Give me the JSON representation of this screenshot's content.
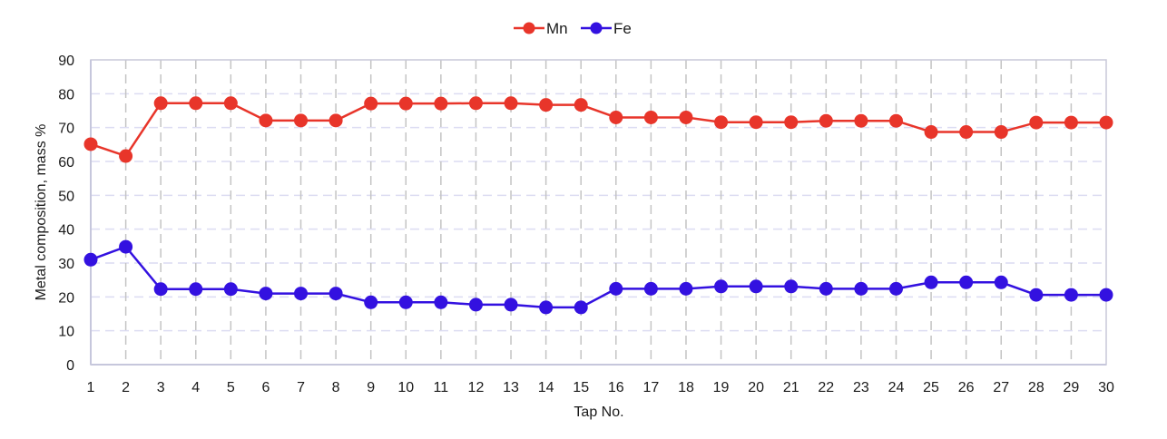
{
  "chart_data": {
    "type": "line",
    "title": "",
    "xlabel": "Tap No.",
    "ylabel": "Metal composition, mass %",
    "ylim": [
      0,
      90
    ],
    "yticks": [
      0,
      10,
      20,
      30,
      40,
      50,
      60,
      70,
      80,
      90
    ],
    "grid": true,
    "legend_position": "top-center",
    "categories": [
      1,
      2,
      3,
      4,
      5,
      6,
      7,
      8,
      9,
      10,
      11,
      12,
      13,
      14,
      15,
      16,
      17,
      18,
      19,
      20,
      21,
      22,
      23,
      24,
      25,
      26,
      27,
      28,
      29,
      30
    ],
    "series": [
      {
        "name": "Mn",
        "color": "#E8352A",
        "marker": "circle",
        "values": [
          65.1,
          61.6,
          77.2,
          77.2,
          77.2,
          72.1,
          72.1,
          72.1,
          77.1,
          77.1,
          77.1,
          77.2,
          77.2,
          76.7,
          76.7,
          73.0,
          73.0,
          73.0,
          71.6,
          71.6,
          71.6,
          72.0,
          72.0,
          72.0,
          68.7,
          68.7,
          68.7,
          71.5,
          71.5,
          71.5
        ]
      },
      {
        "name": "Fe",
        "color": "#3311E0",
        "marker": "circle",
        "values": [
          31.0,
          34.8,
          22.3,
          22.3,
          22.3,
          21.0,
          21.0,
          21.0,
          18.4,
          18.4,
          18.4,
          17.7,
          17.7,
          16.9,
          16.9,
          22.4,
          22.4,
          22.4,
          23.1,
          23.1,
          23.1,
          22.4,
          22.4,
          22.4,
          24.3,
          24.3,
          24.3,
          20.6,
          20.6,
          20.6
        ]
      }
    ]
  },
  "legend": {
    "items": [
      {
        "label": "Mn",
        "color": "#E8352A"
      },
      {
        "label": "Fe",
        "color": "#3311E0"
      }
    ]
  },
  "axes": {
    "x_title": "Tap No.",
    "y_title": "Metal composition, mass %"
  }
}
